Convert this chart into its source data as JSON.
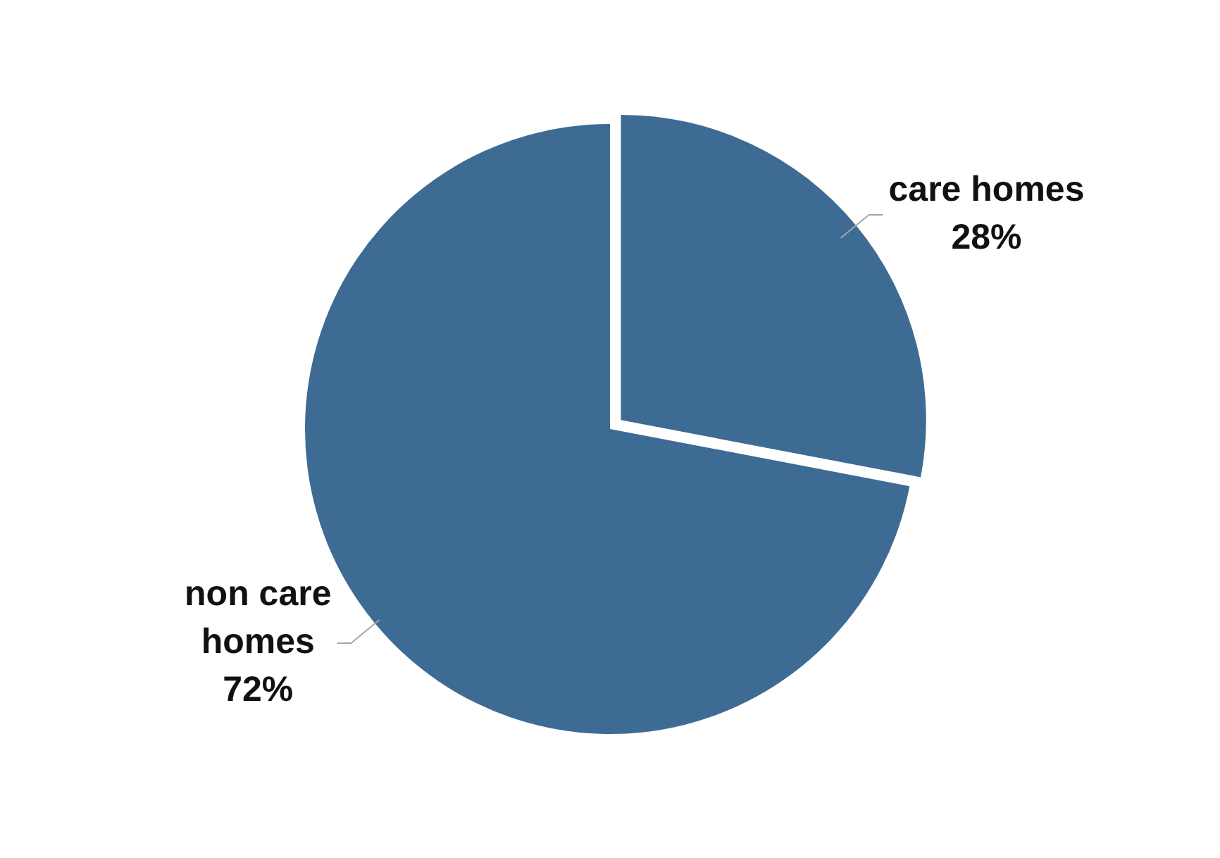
{
  "chart_data": {
    "type": "pie",
    "categories": [
      "care homes",
      "non care homes"
    ],
    "values": [
      28,
      72
    ],
    "value_labels": [
      "28%",
      "72%"
    ],
    "colors": [
      "#3e6b94",
      "#3e6b94"
    ],
    "legend": false
  }
}
